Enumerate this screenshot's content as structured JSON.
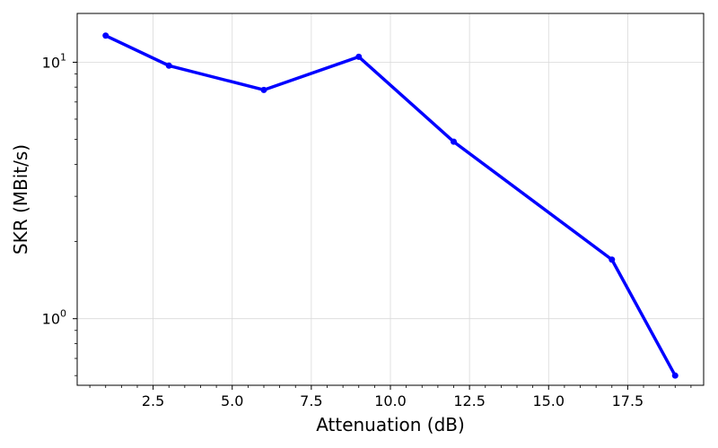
{
  "chart_data": {
    "type": "line",
    "xlabel": "Attenuation (dB)",
    "ylabel": "SKR (MBit/s)",
    "x_scale": "linear",
    "y_scale": "log",
    "xlim": [
      0.1,
      19.9
    ],
    "ylim": [
      0.55,
      15.5
    ],
    "grid": true,
    "x_ticks": [
      {
        "value": 2.5,
        "label": "2.5"
      },
      {
        "value": 5.0,
        "label": "5.0"
      },
      {
        "value": 7.5,
        "label": "7.5"
      },
      {
        "value": 10.0,
        "label": "10.0"
      },
      {
        "value": 12.5,
        "label": "12.5"
      },
      {
        "value": 15.0,
        "label": "15.0"
      },
      {
        "value": 17.5,
        "label": "17.5"
      }
    ],
    "y_ticks": [
      {
        "value": 1,
        "base": "10",
        "exp": "0"
      },
      {
        "value": 10,
        "base": "10",
        "exp": "1"
      }
    ],
    "series": [
      {
        "color": "#0000ff",
        "marker": "circle",
        "points": [
          {
            "x": 1,
            "y": 12.7
          },
          {
            "x": 3,
            "y": 9.7
          },
          {
            "x": 6,
            "y": 7.8
          },
          {
            "x": 9,
            "y": 10.5
          },
          {
            "x": 12,
            "y": 4.9
          },
          {
            "x": 17,
            "y": 1.7
          },
          {
            "x": 19,
            "y": 0.6
          }
        ]
      }
    ]
  }
}
